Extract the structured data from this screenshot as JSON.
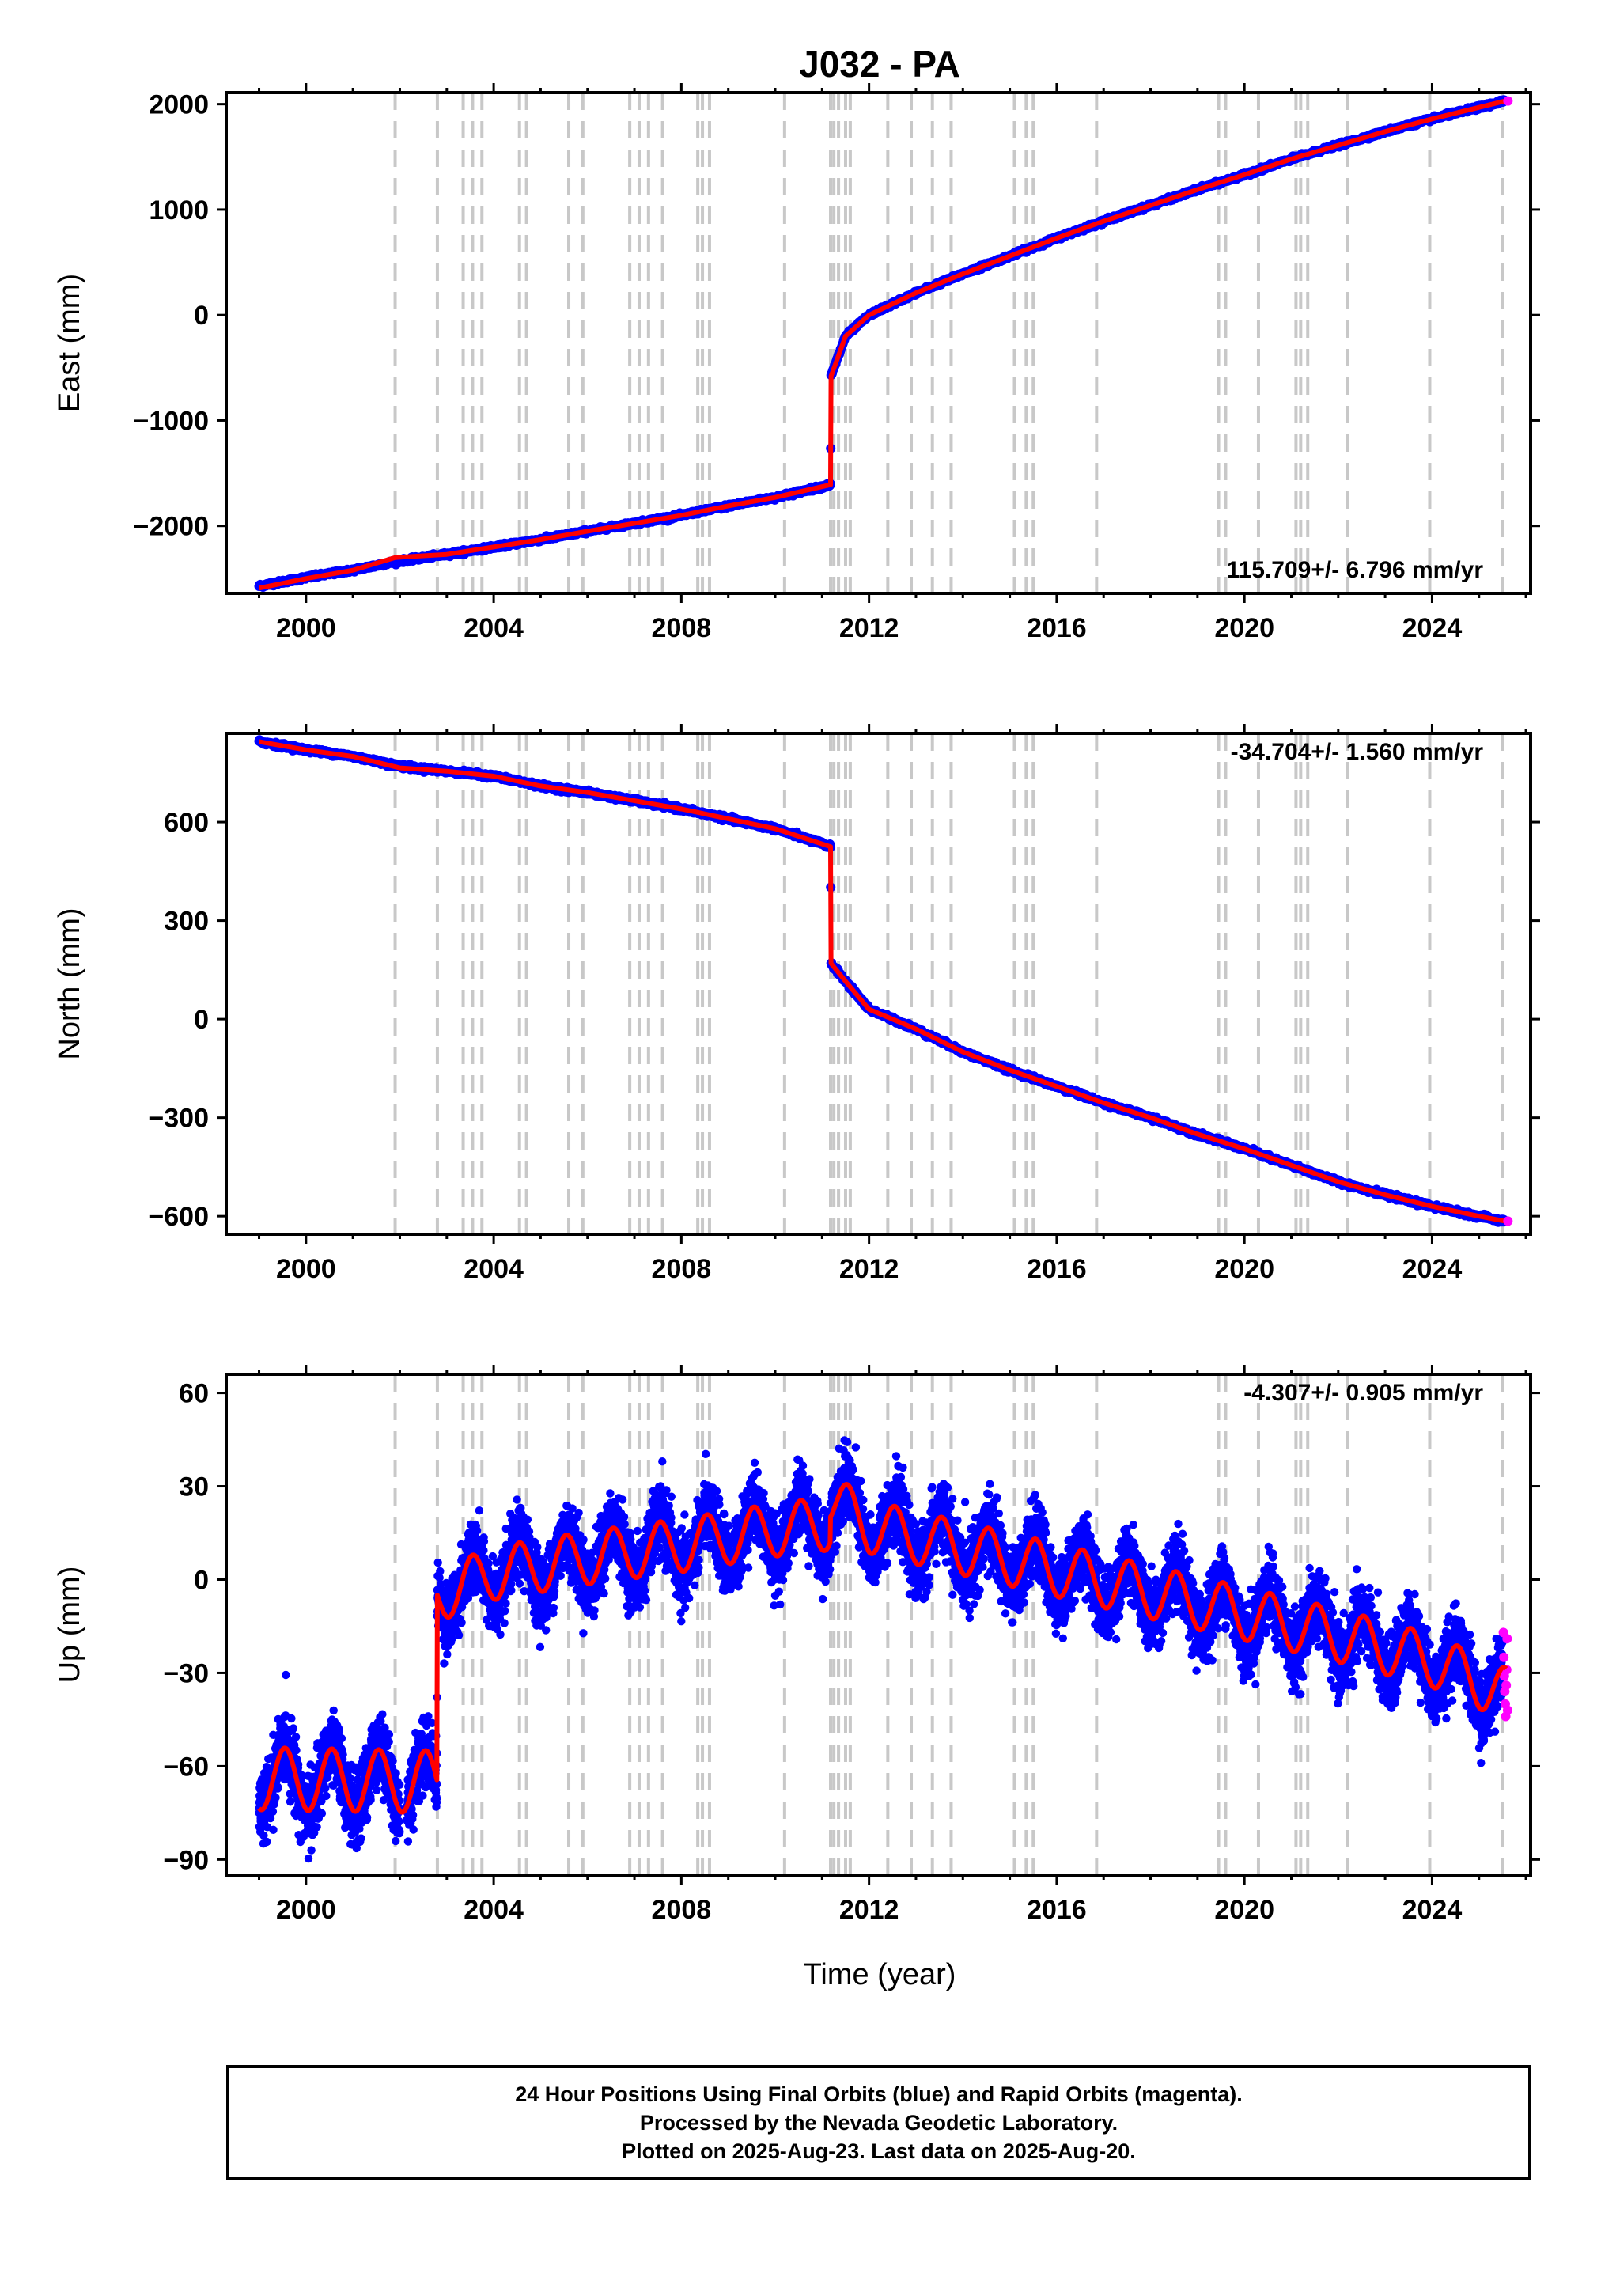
{
  "title": "J032 - PA",
  "xlabel": "Time (year)",
  "colors": {
    "final": "#0000ff",
    "rapid": "#ff00ff",
    "model": "#ff0000",
    "event_line": "#c8c8c8",
    "axes": "#000000"
  },
  "caption": {
    "line1": "24 Hour Positions Using Final Orbits (blue) and Rapid Orbits (magenta).",
    "line2": "Processed by the Nevada Geodetic Laboratory.",
    "line3": "Plotted on 2025-Aug-23. Last data on 2025-Aug-20."
  },
  "chart_data": [
    {
      "type": "scatter",
      "component": "east",
      "ylabel": "East (mm)",
      "xlim": [
        1998.3,
        2026.1
      ],
      "ylim": [
        -2640,
        2110
      ],
      "xticks": [
        2000,
        2004,
        2008,
        2012,
        2016,
        2020,
        2024
      ],
      "xtick_labels": [
        "2000",
        "2004",
        "2008",
        "2012",
        "2016",
        "2020",
        "2024"
      ],
      "yticks": [
        -2000,
        -1000,
        0,
        1000,
        2000
      ],
      "ytick_labels": [
        "−2000",
        "−1000",
        "0",
        "1000",
        "2000"
      ],
      "rate_label": "115.709+/- 6.796 mm/yr",
      "rate_position": "bottom-right",
      "series": [
        {
          "role": "final",
          "x": [
            1999.0,
            2000.0,
            2001.0,
            2001.9,
            2003.0,
            2004.0,
            2005.0,
            2006.0,
            2007.0,
            2008.0,
            2009.0,
            2010.0,
            2011.18,
            2011.19,
            2011.5,
            2012.0,
            2013.0,
            2014.0,
            2015.0,
            2016.0,
            2017.0,
            2018.0,
            2019.0,
            2020.0,
            2021.0,
            2022.0,
            2023.0,
            2024.0,
            2025.0,
            2025.55
          ],
          "y": [
            -2570,
            -2490,
            -2420,
            -2340,
            -2270,
            -2200,
            -2130,
            -2050,
            -1975,
            -1900,
            -1810,
            -1730,
            -1610,
            -580,
            -200,
            0,
            210,
            390,
            560,
            730,
            890,
            1040,
            1190,
            1330,
            1480,
            1610,
            1740,
            1860,
            1970,
            2030
          ]
        }
      ],
      "model": {
        "x": [
          1999.0,
          2000.0,
          2001.0,
          2001.9,
          2003.0,
          2004.0,
          2005.0,
          2006.0,
          2007.0,
          2008.0,
          2009.0,
          2010.0,
          2011.18,
          2011.19,
          2011.5,
          2012.0,
          2013.0,
          2014.0,
          2015.0,
          2016.0,
          2017.0,
          2018.0,
          2019.0,
          2020.0,
          2021.0,
          2022.0,
          2023.0,
          2024.0,
          2025.0,
          2025.55
        ],
        "y": [
          -2590,
          -2500,
          -2420,
          -2300,
          -2270,
          -2200,
          -2130,
          -2050,
          -1975,
          -1900,
          -1810,
          -1730,
          -1610,
          -580,
          -200,
          0,
          210,
          390,
          560,
          730,
          890,
          1040,
          1190,
          1330,
          1480,
          1610,
          1740,
          1860,
          1970,
          2030
        ]
      },
      "events": [
        2001.9,
        2002.8,
        2003.35,
        2003.55,
        2003.75,
        2004.55,
        2004.7,
        2005.6,
        2005.9,
        2006.9,
        2007.1,
        2007.3,
        2007.6,
        2008.35,
        2008.45,
        2008.6,
        2010.2,
        2011.18,
        2011.25,
        2011.35,
        2011.5,
        2011.6,
        2012.4,
        2012.9,
        2013.35,
        2013.75,
        2015.1,
        2015.35,
        2015.5,
        2016.85,
        2019.45,
        2019.6,
        2020.3,
        2021.1,
        2021.2,
        2021.35,
        2022.2,
        2023.95,
        2025.5
      ]
    },
    {
      "type": "scatter",
      "component": "north",
      "ylabel": "North (mm)",
      "xlim": [
        1998.3,
        2026.1
      ],
      "ylim": [
        -655,
        870
      ],
      "xticks": [
        2000,
        2004,
        2008,
        2012,
        2016,
        2020,
        2024
      ],
      "xtick_labels": [
        "2000",
        "2004",
        "2008",
        "2012",
        "2016",
        "2020",
        "2024"
      ],
      "yticks": [
        -600,
        -300,
        0,
        300,
        600
      ],
      "ytick_labels": [
        "−600",
        "−300",
        "0",
        "300",
        "600"
      ],
      "rate_label": "-34.704+/- 1.560 mm/yr",
      "rate_position": "top-right",
      "series": [
        {
          "role": "final",
          "x": [
            1999.0,
            2000.0,
            2001.0,
            2002.0,
            2003.0,
            2004.0,
            2005.0,
            2006.0,
            2007.0,
            2008.0,
            2009.0,
            2010.0,
            2011.18,
            2011.19,
            2011.5,
            2012.0,
            2013.0,
            2014.0,
            2015.0,
            2016.0,
            2017.0,
            2018.0,
            2019.0,
            2020.0,
            2021.0,
            2022.0,
            2023.0,
            2024.0,
            2025.0,
            2025.55
          ],
          "y": [
            845,
            820,
            800,
            770,
            755,
            740,
            710,
            690,
            665,
            640,
            610,
            580,
            525,
            170,
            115,
            30,
            -30,
            -100,
            -155,
            -205,
            -255,
            -300,
            -350,
            -395,
            -445,
            -495,
            -535,
            -570,
            -600,
            -615
          ]
        }
      ],
      "model": {
        "x": [
          1999.0,
          2000.0,
          2001.0,
          2002.0,
          2003.0,
          2004.0,
          2005.0,
          2006.0,
          2007.0,
          2008.0,
          2009.0,
          2010.0,
          2011.18,
          2011.19,
          2011.5,
          2012.0,
          2013.0,
          2014.0,
          2015.0,
          2016.0,
          2017.0,
          2018.0,
          2019.0,
          2020.0,
          2021.0,
          2022.0,
          2023.0,
          2024.0,
          2025.0,
          2025.55
        ],
        "y": [
          845,
          820,
          800,
          765,
          755,
          740,
          710,
          690,
          665,
          640,
          610,
          580,
          525,
          170,
          115,
          30,
          -30,
          -100,
          -155,
          -205,
          -255,
          -300,
          -350,
          -395,
          -445,
          -495,
          -535,
          -570,
          -600,
          -615
        ]
      },
      "events": [
        2001.9,
        2002.8,
        2003.35,
        2003.55,
        2003.75,
        2004.55,
        2004.7,
        2005.6,
        2005.9,
        2006.9,
        2007.1,
        2007.3,
        2007.6,
        2008.35,
        2008.45,
        2008.6,
        2010.2,
        2011.18,
        2011.25,
        2011.35,
        2011.5,
        2011.6,
        2012.4,
        2012.9,
        2013.35,
        2013.75,
        2015.1,
        2015.35,
        2015.5,
        2016.85,
        2019.45,
        2019.6,
        2020.3,
        2021.1,
        2021.2,
        2021.35,
        2022.2,
        2023.95,
        2025.5
      ]
    },
    {
      "type": "scatter",
      "component": "up",
      "ylabel": "Up (mm)",
      "xlim": [
        1998.3,
        2026.1
      ],
      "ylim": [
        -95,
        66
      ],
      "xticks": [
        2000,
        2004,
        2008,
        2012,
        2016,
        2020,
        2024
      ],
      "xtick_labels": [
        "2000",
        "2004",
        "2008",
        "2012",
        "2016",
        "2020",
        "2024"
      ],
      "yticks": [
        -90,
        -60,
        -30,
        0,
        30,
        60
      ],
      "ytick_labels": [
        "−90",
        "−60",
        "−30",
        "0",
        "30",
        "60"
      ],
      "rate_label": "-4.307+/- 0.905 mm/yr",
      "rate_position": "top-right",
      "seasonal": {
        "annual_amplitude_mm": 8.5,
        "pre_offset_amplitude_mm": 10,
        "scatter_mm": 5.5,
        "peak_phase_year_fraction": 0.55
      },
      "offsets": [
        {
          "x": 2002.8,
          "jump_mm": 55
        },
        {
          "x": 2011.18,
          "jump_mm": 8
        }
      ],
      "trend": {
        "x": [
          1999.0,
          2002.79,
          2002.8,
          2004.0,
          2006.0,
          2008.0,
          2010.0,
          2011.17,
          2011.18,
          2012.0,
          2014.0,
          2016.0,
          2018.0,
          2020.0,
          2022.0,
          2024.0,
          2025.58
        ],
        "y": [
          -64,
          -65,
          -5,
          2,
          7,
          11,
          16,
          18,
          26,
          17,
          10,
          3,
          -4,
          -11,
          -18,
          -26,
          -37
        ]
      },
      "series": [
        {
          "role": "final",
          "x_range": [
            1999.0,
            2025.5
          ]
        },
        {
          "role": "rapid",
          "x": [
            2025.52,
            2025.53,
            2025.54,
            2025.55,
            2025.56,
            2025.57,
            2025.58,
            2025.59,
            2025.6,
            2025.61
          ],
          "y": [
            -17,
            -25,
            -31,
            -36,
            -40,
            -44,
            -34,
            -29,
            -19,
            -42
          ]
        }
      ],
      "events": [
        2001.9,
        2002.8,
        2003.35,
        2003.55,
        2003.75,
        2004.55,
        2004.7,
        2005.6,
        2005.9,
        2006.9,
        2007.1,
        2007.3,
        2007.6,
        2008.35,
        2008.45,
        2008.6,
        2010.2,
        2011.18,
        2011.25,
        2011.35,
        2011.5,
        2011.6,
        2012.4,
        2012.9,
        2013.35,
        2013.75,
        2015.1,
        2015.35,
        2015.5,
        2016.85,
        2019.45,
        2019.6,
        2020.3,
        2021.1,
        2021.2,
        2021.35,
        2022.2,
        2023.95,
        2025.5
      ]
    }
  ]
}
